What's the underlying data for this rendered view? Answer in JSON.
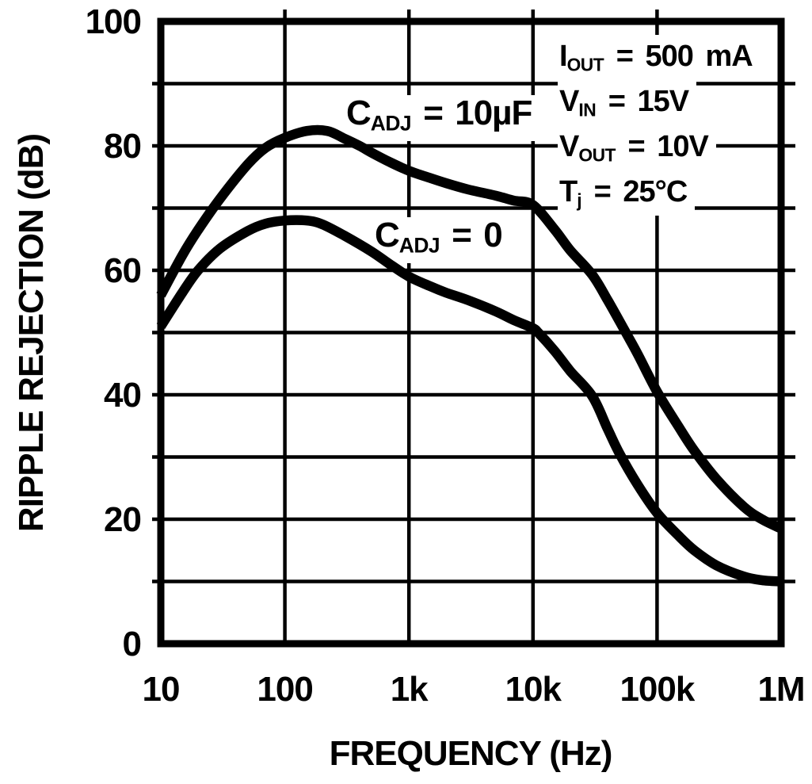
{
  "page": {
    "background": "#ffffff",
    "ink": "#000000"
  },
  "y_axis": {
    "title": "RIPPLE REJECTION (dB)",
    "ticks": [
      {
        "label": "100",
        "value": 100
      },
      {
        "label": "80",
        "value": 80
      },
      {
        "label": "60",
        "value": 60
      },
      {
        "label": "40",
        "value": 40
      },
      {
        "label": "20",
        "value": 20
      },
      {
        "label": "0",
        "value": 0
      }
    ]
  },
  "x_axis": {
    "title": "FREQUENCY (Hz)",
    "ticks": [
      {
        "label": "10",
        "value": 10
      },
      {
        "label": "100",
        "value": 100
      },
      {
        "label": "1k",
        "value": 1000
      },
      {
        "label": "10k",
        "value": 10000
      },
      {
        "label": "100k",
        "value": 100000
      },
      {
        "label": "1M",
        "value": 1000000
      }
    ]
  },
  "curve_labels": [
    {
      "base": "C",
      "sub": "ADJ",
      "rest": " = 10µF"
    },
    {
      "base": "C",
      "sub": "ADJ",
      "rest": " = 0"
    }
  ],
  "conditions": [
    {
      "base": "I",
      "sub": "OUT",
      "rest": " = 500 mA"
    },
    {
      "base": "V",
      "sub": "IN",
      "rest": " = 15V"
    },
    {
      "base": "V",
      "sub": "OUT",
      "rest": " = 10V"
    },
    {
      "base": "T",
      "sub": "j",
      "rest": " = 25°C"
    }
  ],
  "chart_data": {
    "type": "line",
    "title": "",
    "xlabel": "FREQUENCY (Hz)",
    "ylabel": "RIPPLE REJECTION (dB)",
    "x_scale": "log",
    "xlim": [
      10,
      1000000
    ],
    "ylim": [
      0,
      100
    ],
    "grid": "on",
    "x_gridlines_at": [
      10,
      100,
      1000,
      10000,
      100000,
      1000000
    ],
    "y_gridline_step": 10,
    "line_color": "#000000",
    "series": [
      {
        "name": "CADJ = 10uF",
        "points": [
          [
            10,
            56
          ],
          [
            15,
            62.5
          ],
          [
            20,
            66.5
          ],
          [
            30,
            71.5
          ],
          [
            50,
            77
          ],
          [
            70,
            79.7
          ],
          [
            100,
            81.3
          ],
          [
            150,
            82.4
          ],
          [
            220,
            82.4
          ],
          [
            300,
            81.2
          ],
          [
            400,
            80
          ],
          [
            500,
            78.9
          ],
          [
            700,
            77.4
          ],
          [
            1000,
            76
          ],
          [
            1500,
            74.8
          ],
          [
            2000,
            74
          ],
          [
            3000,
            73
          ],
          [
            5000,
            72
          ],
          [
            7000,
            71.2
          ],
          [
            10000,
            70.5
          ],
          [
            15000,
            66.5
          ],
          [
            20000,
            63.2
          ],
          [
            30000,
            59.3
          ],
          [
            40000,
            55.2
          ],
          [
            56000,
            50
          ],
          [
            70000,
            46.5
          ],
          [
            100000,
            40.5
          ],
          [
            150000,
            34.8
          ],
          [
            200000,
            31
          ],
          [
            300000,
            26.5
          ],
          [
            500000,
            22
          ],
          [
            700000,
            20
          ],
          [
            1000000,
            18.5
          ]
        ]
      },
      {
        "name": "CADJ = 0",
        "points": [
          [
            10,
            51
          ],
          [
            15,
            56.5
          ],
          [
            20,
            60
          ],
          [
            30,
            63.5
          ],
          [
            50,
            66.3
          ],
          [
            70,
            67.5
          ],
          [
            100,
            68
          ],
          [
            150,
            68
          ],
          [
            200,
            67.4
          ],
          [
            300,
            65.6
          ],
          [
            500,
            63
          ],
          [
            700,
            61
          ],
          [
            1000,
            59
          ],
          [
            1500,
            57.4
          ],
          [
            2000,
            56.4
          ],
          [
            3000,
            55.2
          ],
          [
            5000,
            53.4
          ],
          [
            7000,
            52
          ],
          [
            10000,
            50.7
          ],
          [
            11000,
            50
          ],
          [
            15000,
            47
          ],
          [
            20000,
            43.8
          ],
          [
            30000,
            39.8
          ],
          [
            40000,
            34.5
          ],
          [
            50000,
            30.5
          ],
          [
            70000,
            25.5
          ],
          [
            100000,
            21
          ],
          [
            150000,
            17.3
          ],
          [
            200000,
            15
          ],
          [
            300000,
            12.6
          ],
          [
            500000,
            10.8
          ],
          [
            700000,
            10.2
          ],
          [
            1000000,
            10
          ]
        ]
      }
    ]
  }
}
